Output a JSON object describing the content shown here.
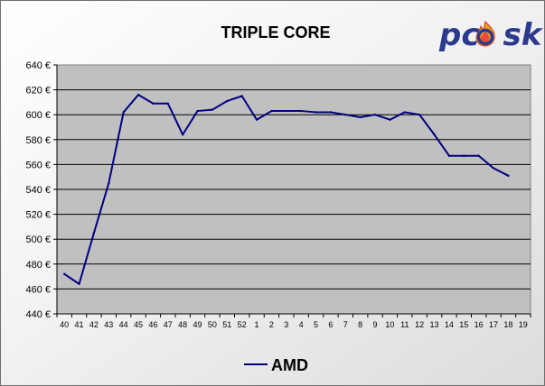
{
  "chart_data": {
    "type": "line",
    "title": "TRIPLE CORE",
    "xlabel": "",
    "ylabel": "",
    "categories": [
      "40",
      "41",
      "42",
      "43",
      "44",
      "45",
      "46",
      "47",
      "48",
      "49",
      "50",
      "51",
      "52",
      "1",
      "2",
      "3",
      "4",
      "5",
      "6",
      "7",
      "8",
      "9",
      "10",
      "11",
      "12",
      "13",
      "14",
      "15",
      "16",
      "17",
      "18",
      "19"
    ],
    "series": [
      {
        "name": "AMD",
        "color": "#000080",
        "values": [
          472,
          464,
          505,
          545,
          602,
          616,
          609,
          609,
          584,
          603,
          604,
          611,
          615,
          596,
          603,
          603,
          603,
          602,
          602,
          600,
          598,
          600,
          596,
          602,
          600,
          584,
          567,
          567,
          567,
          557,
          551,
          null
        ]
      }
    ],
    "ylim": [
      440,
      640
    ],
    "yticks": [
      440,
      460,
      480,
      500,
      520,
      540,
      560,
      580,
      600,
      620,
      640
    ],
    "y_unit_suffix": " €",
    "grid": true,
    "grid_axis": "y",
    "plot_background": "#c0c0c0",
    "legend_position": "bottom"
  },
  "logo": {
    "text_pre": "pc",
    "text_post": "sk",
    "flame": "flame-o-icon",
    "colors": {
      "text": "#2b3a8f",
      "flame_outer": "#f39c12",
      "flame_inner": "#e74c3c"
    }
  }
}
